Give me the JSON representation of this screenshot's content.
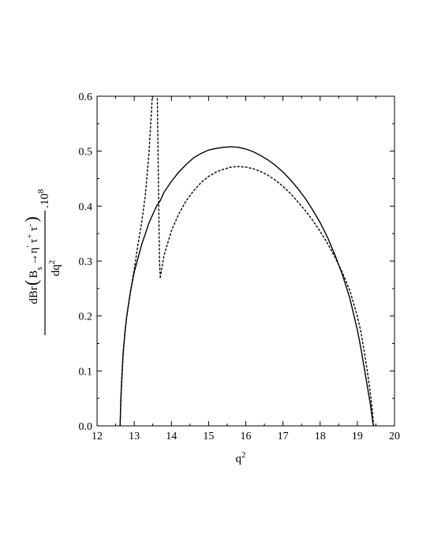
{
  "chart_data": {
    "type": "line",
    "xlabel": "q",
    "xlabel_sup": "2",
    "ylabel_parts": {
      "prefix": "dBr",
      "lparen": "(",
      "B": "B",
      "B_sub": "s",
      "arrow": "→η",
      "prime": "'",
      "tau1": "τ",
      "tau1_sup": "+",
      "tau2": "τ",
      "tau2_sup": "-",
      "rparen": ")",
      "denominator": "dq",
      "denominator_sup": "2",
      "factor": ".10",
      "factor_sup": "8"
    },
    "xlim": [
      12,
      20
    ],
    "ylim": [
      0.0,
      0.6
    ],
    "xticks": [
      "12",
      "13",
      "14",
      "15",
      "16",
      "17",
      "18",
      "19",
      "20"
    ],
    "yticks": [
      "0.0",
      "0.1",
      "0.2",
      "0.3",
      "0.4",
      "0.5",
      "0.6"
    ],
    "grid": false,
    "series": [
      {
        "style": "solid",
        "x": [
          12.62,
          12.64,
          12.66,
          12.7,
          12.75,
          12.8,
          12.9,
          13.0,
          13.1,
          13.2,
          13.3,
          13.4,
          13.5,
          13.6,
          13.7,
          13.8,
          14.0,
          14.2,
          14.4,
          14.6,
          14.8,
          15.0,
          15.2,
          15.4,
          15.6,
          15.8,
          16.0,
          16.2,
          16.4,
          16.6,
          16.8,
          17.0,
          17.2,
          17.4,
          17.6,
          17.8,
          18.0,
          18.2,
          18.4,
          18.6,
          18.8,
          19.0,
          19.1,
          19.2,
          19.3,
          19.35,
          19.4,
          19.42,
          19.44
        ],
        "y": [
          0.0,
          0.05,
          0.08,
          0.13,
          0.17,
          0.2,
          0.245,
          0.28,
          0.305,
          0.33,
          0.35,
          0.37,
          0.385,
          0.4,
          0.41,
          0.425,
          0.445,
          0.462,
          0.476,
          0.488,
          0.496,
          0.502,
          0.505,
          0.507,
          0.508,
          0.507,
          0.504,
          0.499,
          0.492,
          0.484,
          0.474,
          0.462,
          0.448,
          0.432,
          0.414,
          0.393,
          0.37,
          0.343,
          0.311,
          0.275,
          0.232,
          0.175,
          0.14,
          0.1,
          0.06,
          0.04,
          0.015,
          0.005,
          0.0
        ]
      },
      {
        "style": "dotted",
        "segments": [
          {
            "x": [
              12.62,
              12.65,
              12.7,
              12.75,
              12.8,
              12.9,
              13.0,
              13.1,
              13.2,
              13.3,
              13.4,
              13.47,
              13.5
            ],
            "y": [
              0.0,
              0.06,
              0.13,
              0.17,
              0.2,
              0.245,
              0.285,
              0.33,
              0.37,
              0.42,
              0.5,
              0.58,
              0.62
            ]
          },
          {
            "x": [
              13.62,
              13.64,
              13.66,
              13.68,
              13.7
            ],
            "y": [
              0.61,
              0.5,
              0.4,
              0.3,
              0.27
            ]
          },
          {
            "x": [
              13.7,
              13.8,
              14.0,
              14.2,
              14.4,
              14.6,
              14.8,
              15.0,
              15.2,
              15.4,
              15.6,
              15.8,
              16.0,
              16.2,
              16.4,
              16.6,
              16.8,
              17.0,
              17.2,
              17.4,
              17.6,
              17.8,
              18.0,
              18.2,
              18.4,
              18.6,
              18.8,
              19.0,
              19.1,
              19.2,
              19.3,
              19.35,
              19.4,
              19.44
            ],
            "y": [
              0.27,
              0.31,
              0.355,
              0.386,
              0.41,
              0.428,
              0.443,
              0.454,
              0.462,
              0.467,
              0.471,
              0.472,
              0.471,
              0.468,
              0.463,
              0.456,
              0.447,
              0.436,
              0.423,
              0.408,
              0.392,
              0.374,
              0.354,
              0.332,
              0.307,
              0.279,
              0.246,
              0.2,
              0.17,
              0.13,
              0.085,
              0.06,
              0.03,
              0.0
            ]
          }
        ]
      }
    ]
  }
}
